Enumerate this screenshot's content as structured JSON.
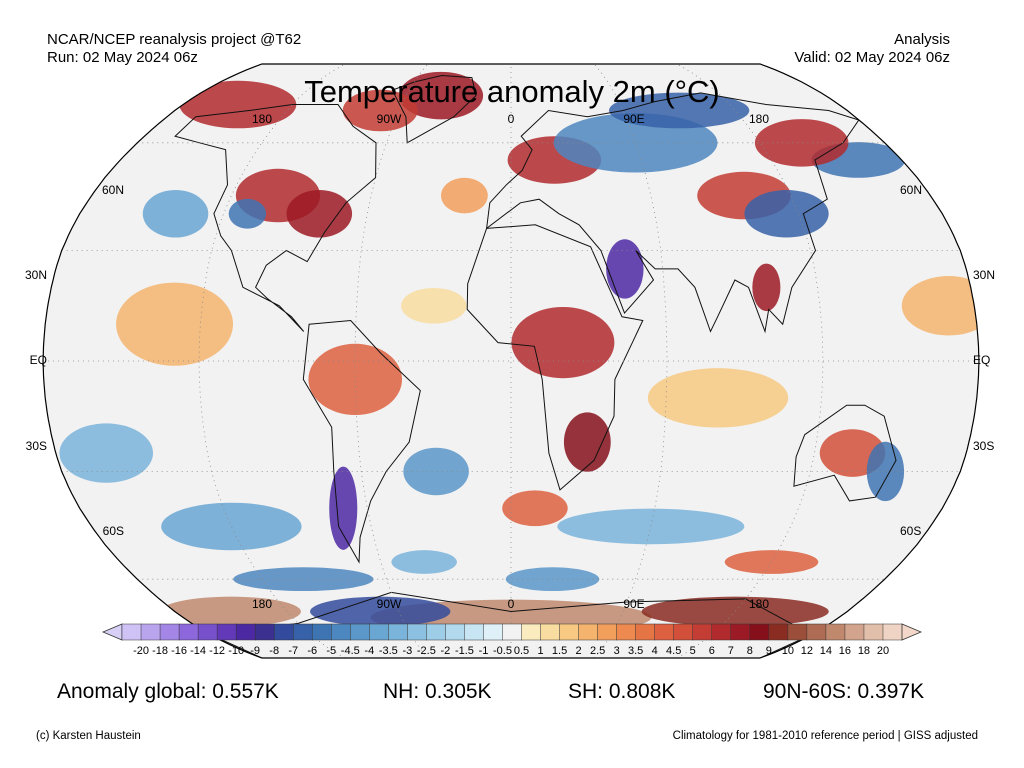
{
  "header": {
    "source": "NCAR/NCEP reanalysis project @T62",
    "run": "Run: 02 May 2024 06z",
    "type": "Analysis",
    "valid": "Valid: 02 May 2024 06z"
  },
  "title": "Temperature anomaly 2m (°C)",
  "map": {
    "projection": "robinson",
    "lon_labels_top": [
      "180",
      "90W",
      "0",
      "90E",
      "180"
    ],
    "lon_labels_bottom": [
      "180",
      "90W",
      "0",
      "90E",
      "180"
    ],
    "lat_labels_left": [
      "60N",
      "30N",
      "EQ",
      "30S",
      "60S"
    ],
    "lat_labels_right": [
      "60N",
      "30N",
      "EQ",
      "30S",
      "60S"
    ],
    "ocean_color": "#f2f2f2"
  },
  "colorbar": {
    "labels": [
      "-20",
      "-18",
      "-16",
      "-14",
      "-12",
      "-10",
      "-9",
      "-8",
      "-7",
      "-6",
      "-5",
      "-4.5",
      "-4",
      "-3.5",
      "-3",
      "-2.5",
      "-2",
      "-1.5",
      "-1",
      "-0.5",
      "0.5",
      "1",
      "1.5",
      "2",
      "2.5",
      "3",
      "3.5",
      "4",
      "4.5",
      "5",
      "6",
      "7",
      "8",
      "9",
      "10",
      "12",
      "14",
      "16",
      "18",
      "20"
    ],
    "colors": [
      "#cfc2f5",
      "#b9a4ee",
      "#a386e6",
      "#8d68dc",
      "#7750cc",
      "#6239b9",
      "#4c29a3",
      "#3b2f8f",
      "#324b9c",
      "#3761a8",
      "#3f74b3",
      "#4d87bf",
      "#5b97c9",
      "#6aa6d2",
      "#7bb4da",
      "#8cc1e1",
      "#9ecde7",
      "#b2d9ee",
      "#c8e5f4",
      "#dff0f8",
      "#f2f2f2",
      "#fbecc0",
      "#f9dda0",
      "#f7c983",
      "#f5b46d",
      "#f29f5c",
      "#ee8a4f",
      "#e67545",
      "#dd6140",
      "#d2503a",
      "#c33d34",
      "#b12a2e",
      "#9c1a25",
      "#85101c",
      "#8a2c22",
      "#9b4e39",
      "#ad6c53",
      "#c0896e",
      "#d2a48d",
      "#e2bfaa",
      "#efd3c4"
    ],
    "left_arrow_color": "#d8cff7",
    "right_arrow_color": "#f3d8c9"
  },
  "stats": {
    "global": "Anomaly global: 0.557K",
    "nh": "NH: 0.305K",
    "sh": "SH: 0.808K",
    "polar": "90N-60S: 0.397K"
  },
  "footer": {
    "credit": "(c) Karsten Haustein",
    "climatology": "Climatology for 1981-2010 reference period | GISS adjusted"
  }
}
